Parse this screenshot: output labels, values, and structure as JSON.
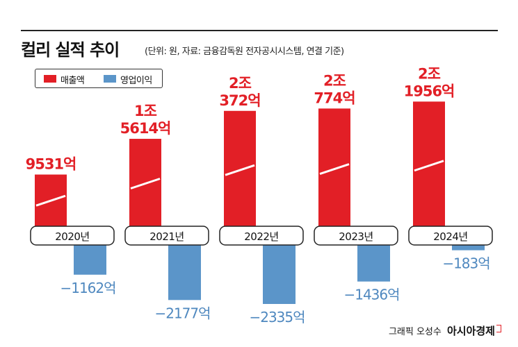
{
  "title": "컬리 실적 추이",
  "subtitle": "(단위: 원, 자료: 금융감독원 전자공시시스템, 연결 기준)",
  "credit": {
    "author": "그래픽 오성수",
    "brand": "아시아경제"
  },
  "colors": {
    "revenue": "#e21f26",
    "profit": "#5b95c9",
    "text_red": "#e21f26",
    "text_blue": "#4f88bf"
  },
  "chart_data": {
    "type": "bar",
    "categories": [
      "2020년",
      "2021년",
      "2022년",
      "2023년",
      "2024년"
    ],
    "series": [
      {
        "name": "매출액",
        "values": [
          9531,
          15614,
          20372,
          20774,
          21956
        ],
        "labels": [
          "9531억",
          "1조|5614억",
          "2조|372억",
          "2조|774억",
          "2조|1956억"
        ],
        "axis_break": true
      },
      {
        "name": "영업이익",
        "values": [
          -1162,
          -2177,
          -2335,
          -1436,
          -183
        ],
        "labels": [
          "-1162억",
          "-2177억",
          "-2335억",
          "-1436억",
          "-183억"
        ]
      }
    ],
    "unit": "억원",
    "legend": "top-left",
    "grid": false
  }
}
